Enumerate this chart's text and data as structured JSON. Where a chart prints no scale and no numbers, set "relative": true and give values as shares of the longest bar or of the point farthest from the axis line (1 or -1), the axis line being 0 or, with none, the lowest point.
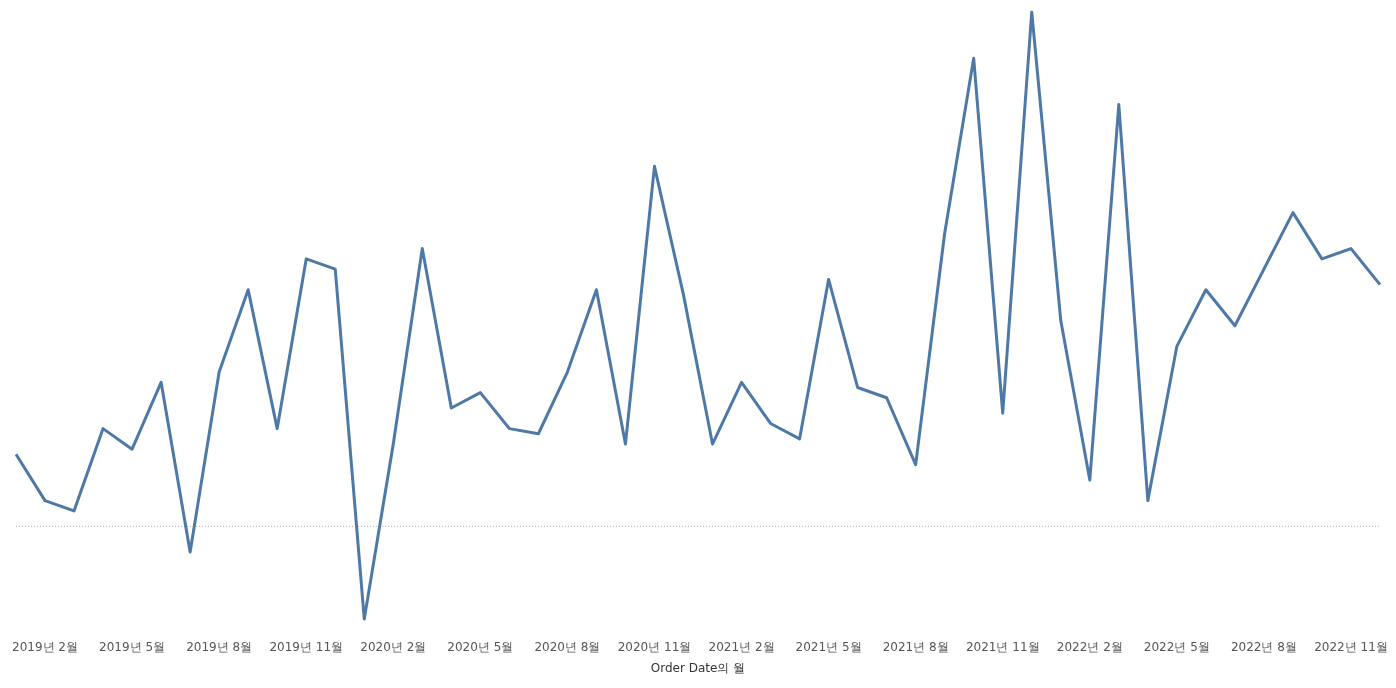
{
  "chart_data": {
    "type": "line",
    "relative": true,
    "xlabel": "Order Date의 월",
    "categories": [
      null,
      "2019년 2월",
      null,
      null,
      "2019년 5월",
      null,
      null,
      "2019년 8월",
      null,
      null,
      "2019년 11월",
      null,
      null,
      "2020년 2월",
      null,
      null,
      "2020년 5월",
      null,
      null,
      "2020년 8월",
      null,
      null,
      "2020년 11월",
      null,
      null,
      "2021년 2월",
      null,
      null,
      "2021년 5월",
      null,
      null,
      "2021년 8월",
      null,
      null,
      "2021년 11월",
      null,
      null,
      "2022년 2월",
      null,
      null,
      "2022년 5월",
      null,
      null,
      "2022년 8월",
      null,
      null,
      "2022년 11월",
      null
    ],
    "series": [
      {
        "color": "#4e79a7",
        "values": [
          0.14,
          0.05,
          0.03,
          0.19,
          0.15,
          0.28,
          -0.05,
          0.3,
          0.46,
          0.19,
          0.52,
          0.5,
          -0.18,
          0.16,
          0.54,
          0.23,
          0.26,
          0.19,
          0.18,
          0.3,
          0.46,
          0.16,
          0.7,
          0.45,
          0.16,
          0.28,
          0.2,
          0.17,
          0.48,
          0.27,
          0.25,
          0.12,
          0.57,
          0.91,
          0.22,
          1,
          0.4,
          0.09,
          0.82,
          0.05,
          0.35,
          0.46,
          0.39,
          0.5,
          0.61,
          0.52,
          0.54,
          0.47
        ]
      }
    ],
    "ref_lines": [
      {
        "axis": "y",
        "value": 0,
        "color": "#b0b0b0",
        "line_style": "dotted"
      }
    ],
    "marker": "none",
    "legend": false
  }
}
